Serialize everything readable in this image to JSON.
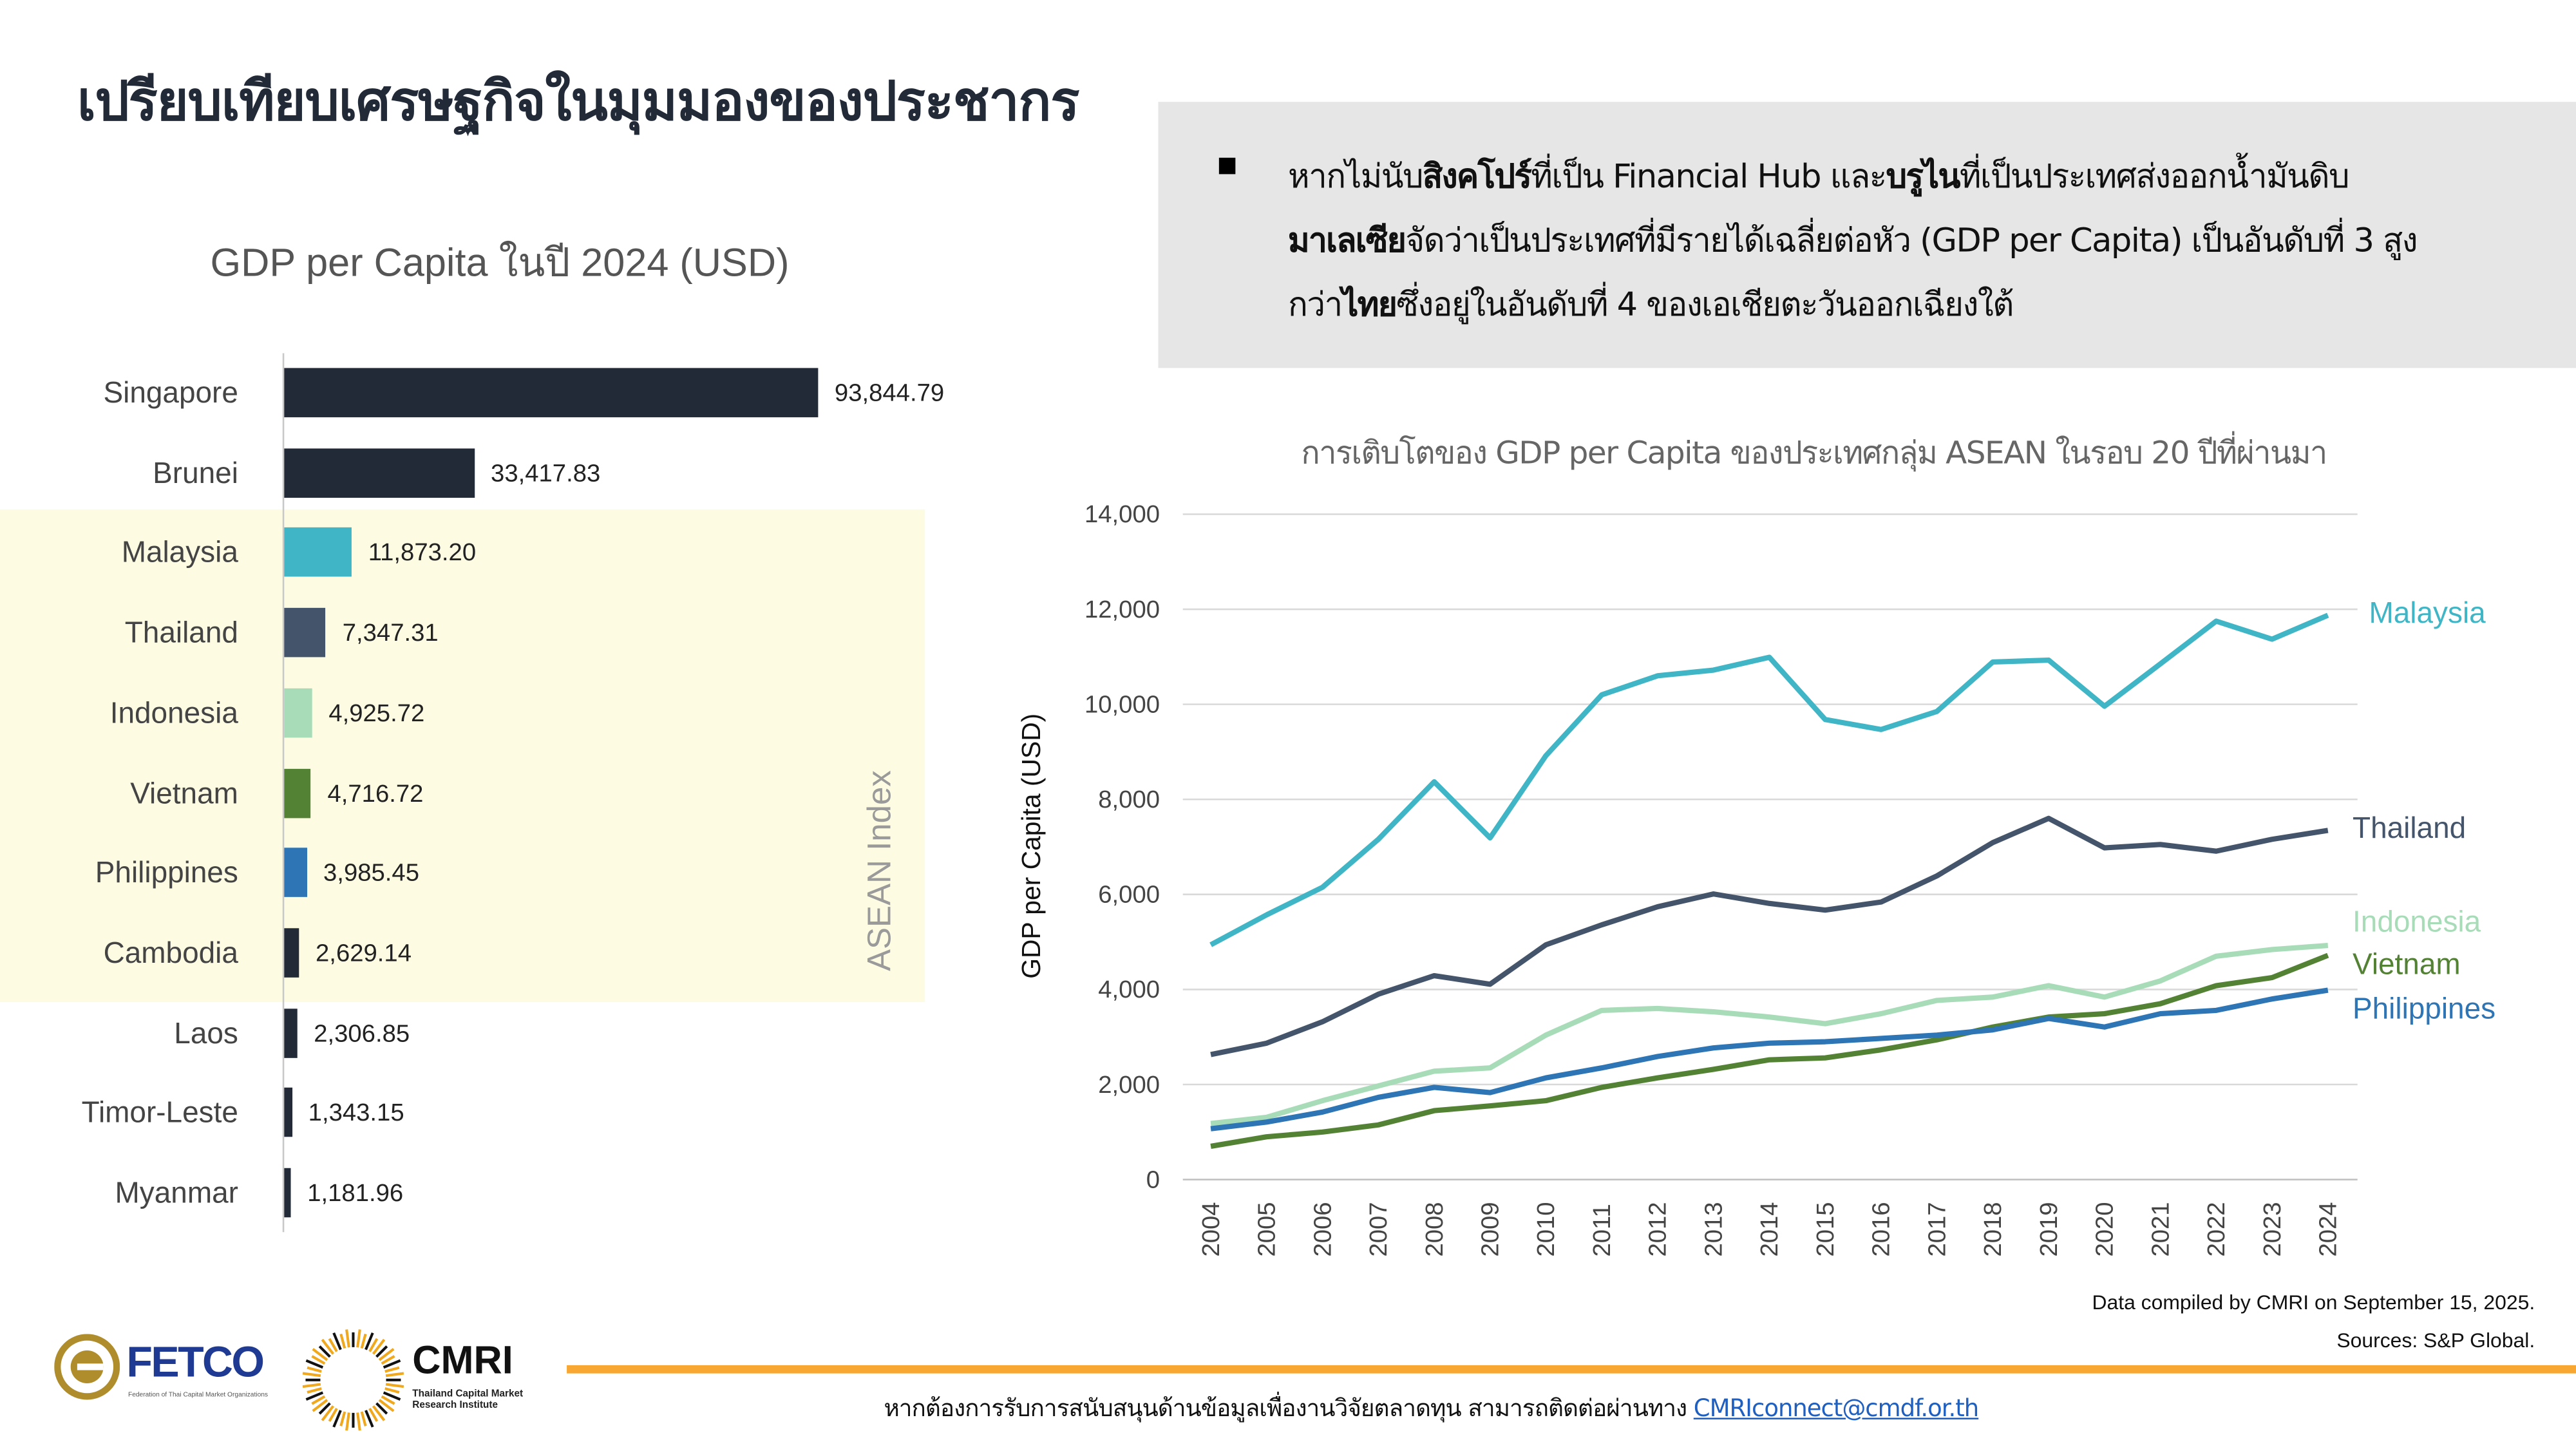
{
  "title": "เปรียบเทียบเศรษฐกิจในมุมมองของประชากร",
  "summary": {
    "segments": [
      {
        "text": "หากไม่นับ",
        "bold": false
      },
      {
        "text": "สิงคโปร์",
        "bold": true
      },
      {
        "text": "ที่เป็น Financial Hub และ",
        "bold": false
      },
      {
        "text": "บรูไน",
        "bold": true
      },
      {
        "text": "ที่เป็นประเทศส่งออกน้ำมันดิบ ",
        "bold": false
      },
      {
        "text": "มาเลเซีย",
        "bold": true
      },
      {
        "text": "จัดว่าเป็นประเทศที่มีรายได้เฉลี่ยต่อหัว (GDP per Capita) เป็นอันดับที่ 3 สูงกว่า",
        "bold": false
      },
      {
        "text": "ไทย",
        "bold": true
      },
      {
        "text": "ซึ่งอยู่ในอันดับที่ 4 ของเอเชียตะวันออกเฉียงใต้",
        "bold": false
      }
    ]
  },
  "chart_data": [
    {
      "type": "bar",
      "orientation": "horizontal",
      "title": "GDP per Capita ในปี 2024 (USD)",
      "group_label": "ASEAN Index",
      "categories": [
        "Singapore",
        "Brunei",
        "Malaysia",
        "Thailand",
        "Indonesia",
        "Vietnam",
        "Philippines",
        "Cambodia",
        "Laos",
        "Timor-Leste",
        "Myanmar"
      ],
      "values": [
        93844.79,
        33417.83,
        11873.2,
        7347.31,
        4925.72,
        4716.72,
        3985.45,
        2629.14,
        2306.85,
        1343.15,
        1181.96
      ],
      "labels": [
        "93,844.79",
        "33,417.83",
        "11,873.20",
        "7,347.31",
        "4,925.72",
        "4,716.72",
        "3,985.45",
        "2,629.14",
        "2,306.85",
        "1,343.15",
        "1,181.96"
      ],
      "colors": [
        "#222a38",
        "#222a38",
        "#3fb5c5",
        "#44546a",
        "#a8dcb8",
        "#548235",
        "#2e75b6",
        "#222a38",
        "#222a38",
        "#222a38",
        "#222a38"
      ],
      "highlighted": [
        "Malaysia",
        "Thailand",
        "Indonesia",
        "Vietnam",
        "Philippines",
        "Cambodia"
      ]
    },
    {
      "type": "line",
      "title": "การเติบโตของ GDP per Capita ของประเทศกลุ่ม ASEAN ในรอบ 20 ปีที่ผ่านมา",
      "ylabel": "GDP per Capita (USD)",
      "xlabel": "",
      "ylim": [
        0,
        14000
      ],
      "yticks": [
        0,
        2000,
        4000,
        6000,
        8000,
        10000,
        12000,
        14000
      ],
      "ytick_labels": [
        "0",
        "2,000",
        "4,000",
        "6,000",
        "8,000",
        "10,000",
        "12,000",
        "14,000"
      ],
      "grid": true,
      "legend": "right",
      "x": [
        "2004",
        "2005",
        "2006",
        "2007",
        "2008",
        "2009",
        "2010",
        "2011",
        "2012",
        "2013",
        "2014",
        "2015",
        "2016",
        "2017",
        "2018",
        "2019",
        "2020",
        "2021",
        "2022",
        "2023",
        "2024"
      ],
      "series": [
        {
          "name": "Malaysia",
          "color": "#3fb5c5",
          "values": [
            4940,
            5570,
            6150,
            7160,
            8370,
            7190,
            8920,
            10200,
            10600,
            10720,
            10990,
            9680,
            9470,
            9850,
            10890,
            10930,
            9960,
            10850,
            11750,
            11370,
            11873
          ]
        },
        {
          "name": "Thailand",
          "color": "#44546a",
          "values": [
            2630,
            2870,
            3320,
            3900,
            4290,
            4110,
            4940,
            5360,
            5740,
            6010,
            5810,
            5670,
            5840,
            6390,
            7090,
            7600,
            6980,
            7050,
            6910,
            7160,
            7347
          ]
        },
        {
          "name": "Indonesia",
          "color": "#a8dcb8",
          "values": [
            1180,
            1310,
            1660,
            1970,
            2280,
            2350,
            3040,
            3560,
            3600,
            3530,
            3420,
            3280,
            3490,
            3770,
            3840,
            4080,
            3840,
            4180,
            4700,
            4840,
            4926
          ]
        },
        {
          "name": "Vietnam",
          "color": "#548235",
          "values": [
            700,
            900,
            1000,
            1150,
            1450,
            1550,
            1660,
            1940,
            2140,
            2320,
            2520,
            2560,
            2730,
            2940,
            3210,
            3420,
            3490,
            3700,
            4080,
            4250,
            4717
          ]
        },
        {
          "name": "Philippines",
          "color": "#2e75b6",
          "values": [
            1070,
            1210,
            1420,
            1730,
            1940,
            1830,
            2140,
            2350,
            2590,
            2770,
            2870,
            2900,
            2970,
            3040,
            3150,
            3390,
            3210,
            3490,
            3560,
            3800,
            3985
          ]
        }
      ]
    }
  ],
  "footer": {
    "compiled": "Data compiled by CMRI on September 15, 2025.",
    "sources": "Sources: S&P Global.",
    "contact_text": "หากต้องการรับการสนับสนุนด้านข้อมูลเพื่องานวิจัยตลาดทุน สามารถติดต่อผ่านทาง ",
    "contact_email": "CMRIconnect@cmdf.or.th",
    "fetco_logo": "FETCO",
    "fetco_sub": "Federation of Thai Capital Market Organizations",
    "cmri_logo": "CMRI",
    "cmri_sub": "Thailand Capital Market Research Institute"
  }
}
